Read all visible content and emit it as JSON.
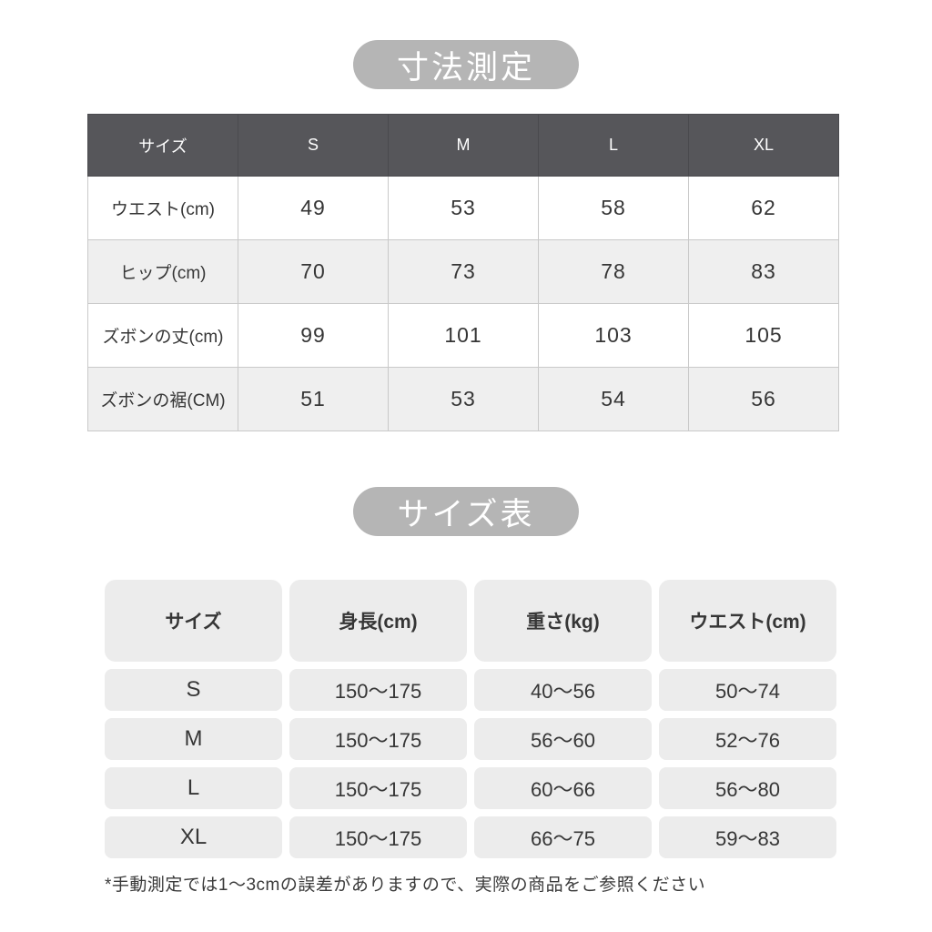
{
  "section1": {
    "badge": "寸法測定",
    "table": {
      "headers": [
        "サイズ",
        "S",
        "M",
        "L",
        "XL"
      ],
      "rows": [
        {
          "label": "ウエスト(cm)",
          "values": [
            "49",
            "53",
            "58",
            "62"
          ]
        },
        {
          "label": "ヒップ(cm)",
          "values": [
            "70",
            "73",
            "78",
            "83"
          ]
        },
        {
          "label": "ズボンの丈(cm)",
          "values": [
            "99",
            "101",
            "103",
            "105"
          ]
        },
        {
          "label": "ズボンの裾(CM)",
          "values": [
            "51",
            "53",
            "54",
            "56"
          ]
        }
      ]
    }
  },
  "section2": {
    "badge": "サイズ表",
    "table": {
      "headers": [
        "サイズ",
        "身長(cm)",
        "重さ(kg)",
        "ウエスト(cm)"
      ],
      "rows": [
        {
          "label": "S",
          "values": [
            "150〜175",
            "40〜56",
            "50〜74"
          ]
        },
        {
          "label": "M",
          "values": [
            "150〜175",
            "56〜60",
            "52〜76"
          ]
        },
        {
          "label": "L",
          "values": [
            "150〜175",
            "60〜66",
            "56〜80"
          ]
        },
        {
          "label": "XL",
          "values": [
            "150〜175",
            "66〜75",
            "59〜83"
          ]
        }
      ]
    }
  },
  "footer": {
    "note": "*手動測定では1〜3cmの誤差がありますので、実際の商品をご参照ください"
  },
  "colors": {
    "badge_background": "#b5b5b5",
    "table1_header_background": "#56565a",
    "table1_alt_row_background": "#efefef",
    "table2_cell_background": "#ececec",
    "text": "#363636",
    "border": "#c9c9c9",
    "page_background": "#ffffff"
  }
}
